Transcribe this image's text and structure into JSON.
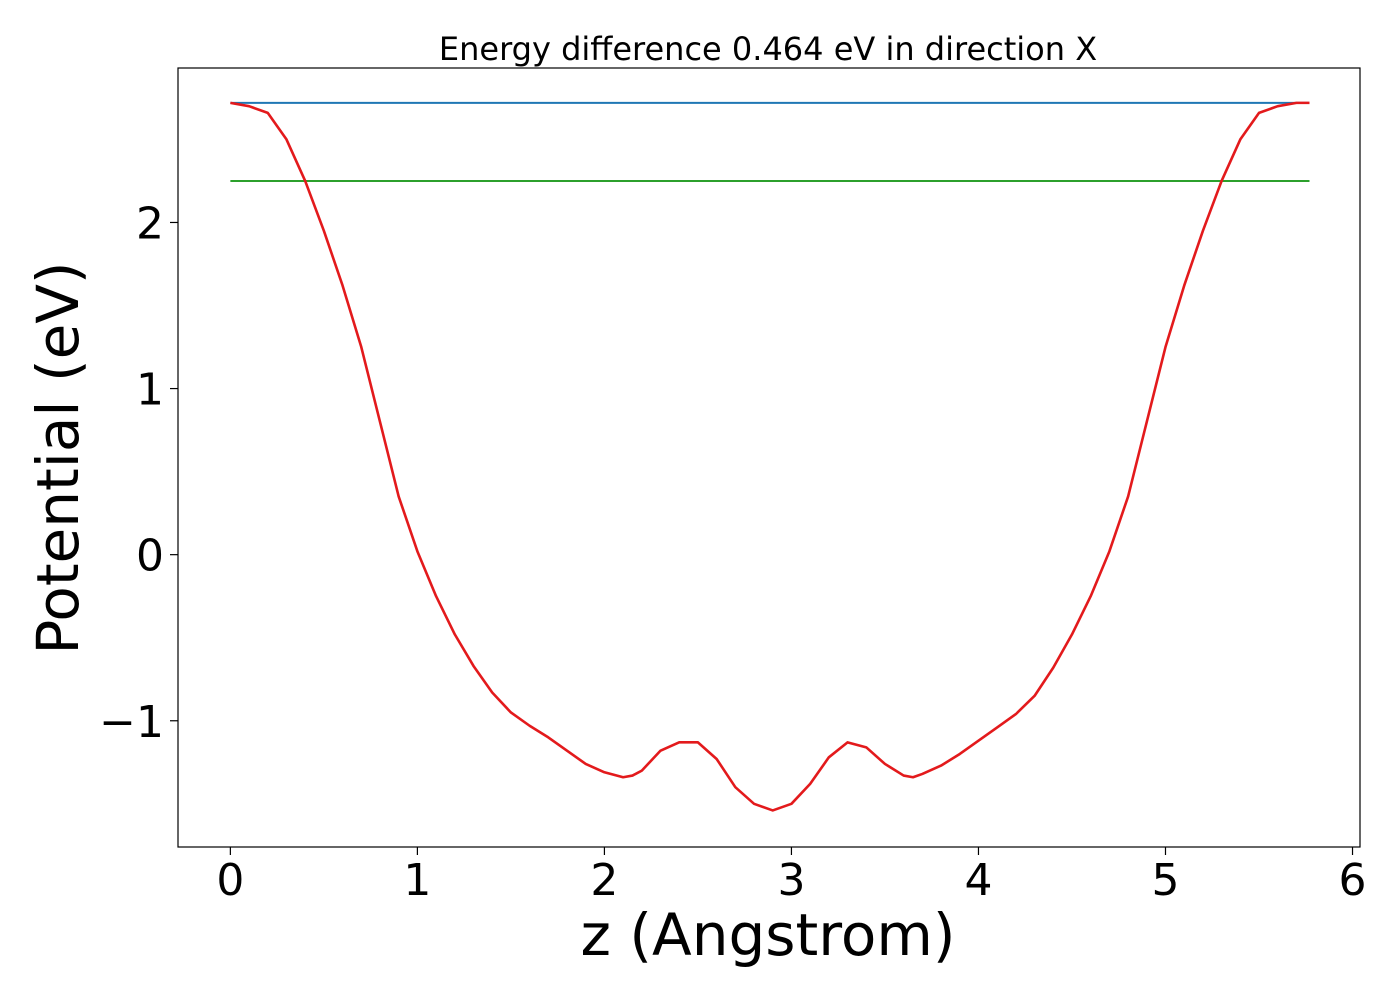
{
  "chart_data": {
    "type": "line",
    "title": "Energy difference 0.464 eV in direction X",
    "xlabel": "z (Angstrom)",
    "ylabel": "Potential (eV)",
    "xlim": [
      -0.28,
      6.04
    ],
    "ylim": [
      -1.76,
      2.93
    ],
    "xticks": [
      0,
      1,
      2,
      3,
      4,
      5,
      6
    ],
    "yticks": [
      -1,
      0,
      1,
      2
    ],
    "xtick_labels": [
      "0",
      "1",
      "2",
      "3",
      "4",
      "5",
      "6"
    ],
    "ytick_labels": [
      "−1",
      "0",
      "1",
      "2"
    ],
    "grid": false,
    "series": [
      {
        "color": "#1f77b4",
        "x": [
          0,
          5.77
        ],
        "y": [
          2.72,
          2.72
        ]
      },
      {
        "color": "#2ca02c",
        "x": [
          0,
          5.77
        ],
        "y": [
          2.25,
          2.25
        ]
      },
      {
        "color": "#e31a1c",
        "x": [
          0,
          0.1,
          0.2,
          0.3,
          0.4,
          0.5,
          0.6,
          0.7,
          0.8,
          0.9,
          1.0,
          1.1,
          1.2,
          1.3,
          1.4,
          1.5,
          1.6,
          1.7,
          1.8,
          1.9,
          2.0,
          2.1,
          2.15,
          2.2,
          2.3,
          2.4,
          2.5,
          2.6,
          2.7,
          2.8,
          2.9,
          3.0,
          3.1,
          3.2,
          3.3,
          3.4,
          3.5,
          3.6,
          3.65,
          3.7,
          3.8,
          3.9,
          4.0,
          4.1,
          4.2,
          4.3,
          4.4,
          4.5,
          4.6,
          4.7,
          4.8,
          4.9,
          5.0,
          5.1,
          5.2,
          5.3,
          5.4,
          5.5,
          5.6,
          5.7,
          5.77
        ],
        "y": [
          2.72,
          2.7,
          2.66,
          2.5,
          2.25,
          1.95,
          1.62,
          1.25,
          0.8,
          0.35,
          0.02,
          -0.25,
          -0.48,
          -0.67,
          -0.83,
          -0.95,
          -1.03,
          -1.1,
          -1.18,
          -1.26,
          -1.31,
          -1.34,
          -1.33,
          -1.3,
          -1.18,
          -1.13,
          -1.13,
          -1.23,
          -1.4,
          -1.5,
          -1.54,
          -1.5,
          -1.38,
          -1.22,
          -1.13,
          -1.16,
          -1.26,
          -1.33,
          -1.34,
          -1.32,
          -1.27,
          -1.2,
          -1.12,
          -1.04,
          -0.96,
          -0.85,
          -0.68,
          -0.48,
          -0.25,
          0.02,
          0.35,
          0.8,
          1.25,
          1.62,
          1.95,
          2.25,
          2.5,
          2.66,
          2.7,
          2.72,
          2.72
        ]
      }
    ]
  }
}
